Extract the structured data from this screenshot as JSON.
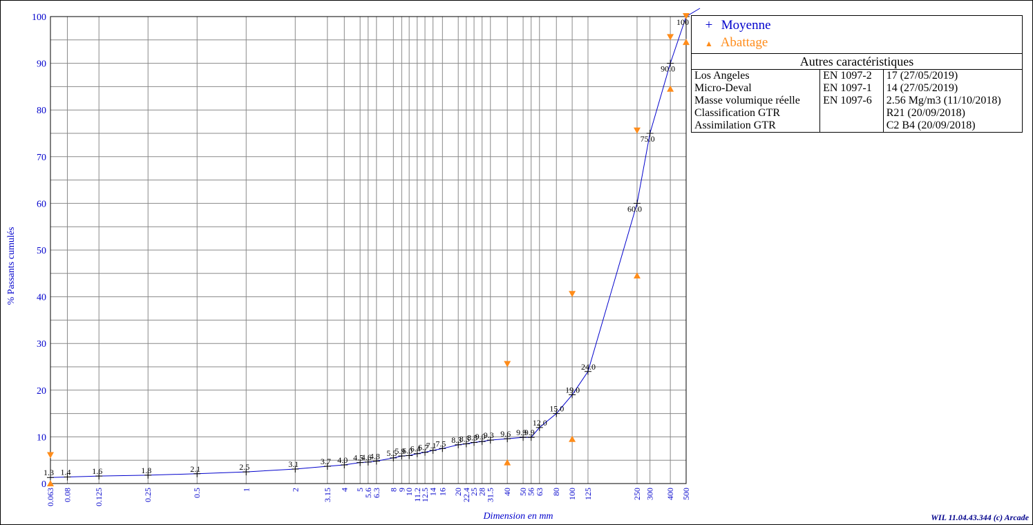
{
  "chart_data": {
    "type": "line",
    "x_scale": "log",
    "xlabel": "Dimension en mm",
    "ylabel": "% Passants cumulés",
    "xlim": [
      0.063,
      500
    ],
    "ylim": [
      0,
      100
    ],
    "y_ticks": [
      "0",
      "10",
      "20",
      "30",
      "40",
      "50",
      "60",
      "70",
      "80",
      "90",
      "100"
    ],
    "x_ticks": [
      {
        "v": 0.063,
        "label": "0.063"
      },
      {
        "v": 0.08,
        "label": "0.08"
      },
      {
        "v": 0.125,
        "label": "0.125"
      },
      {
        "v": 0.25,
        "label": "0.25"
      },
      {
        "v": 0.5,
        "label": "0.5"
      },
      {
        "v": 1,
        "label": "1"
      },
      {
        "v": 2,
        "label": "2"
      },
      {
        "v": 3.15,
        "label": "3.15"
      },
      {
        "v": 4,
        "label": "4"
      },
      {
        "v": 5,
        "label": "5"
      },
      {
        "v": 5.6,
        "label": "5.6"
      },
      {
        "v": 6.3,
        "label": "6.3"
      },
      {
        "v": 8,
        "label": "8"
      },
      {
        "v": 9,
        "label": "9"
      },
      {
        "v": 10,
        "label": "10"
      },
      {
        "v": 11.2,
        "label": "11.2"
      },
      {
        "v": 12.5,
        "label": "12.5"
      },
      {
        "v": 14,
        "label": "14"
      },
      {
        "v": 16,
        "label": "16"
      },
      {
        "v": 20,
        "label": "20"
      },
      {
        "v": 22.4,
        "label": "22.4"
      },
      {
        "v": 25,
        "label": "25"
      },
      {
        "v": 28,
        "label": "28"
      },
      {
        "v": 31.5,
        "label": "31.5"
      },
      {
        "v": 40,
        "label": "40"
      },
      {
        "v": 50,
        "label": "50"
      },
      {
        "v": 56,
        "label": "56"
      },
      {
        "v": 63,
        "label": "63"
      },
      {
        "v": 80,
        "label": "80"
      },
      {
        "v": 100,
        "label": "100"
      },
      {
        "v": 125,
        "label": "125"
      },
      {
        "v": 250,
        "label": "250"
      },
      {
        "v": 300,
        "label": "300"
      },
      {
        "v": 400,
        "label": "400"
      },
      {
        "v": 500,
        "label": "500"
      }
    ],
    "grid": true,
    "series": [
      {
        "name": "Moyenne",
        "color": "#0000cc",
        "points": [
          {
            "x": 0.063,
            "y": 1.3,
            "label": "1.3"
          },
          {
            "x": 0.08,
            "y": 1.4,
            "label": "1.4"
          },
          {
            "x": 0.125,
            "y": 1.6,
            "label": "1.6"
          },
          {
            "x": 0.25,
            "y": 1.8,
            "label": "1.8"
          },
          {
            "x": 0.5,
            "y": 2.1,
            "label": "2.1"
          },
          {
            "x": 1,
            "y": 2.5,
            "label": "2.5"
          },
          {
            "x": 2,
            "y": 3.1,
            "label": "3.1"
          },
          {
            "x": 3.15,
            "y": 3.7,
            "label": "3.7"
          },
          {
            "x": 4,
            "y": 4.0,
            "label": "4.0"
          },
          {
            "x": 5,
            "y": 4.5,
            "label": "4.5"
          },
          {
            "x": 5.6,
            "y": 4.6,
            "label": "4.6"
          },
          {
            "x": 6.3,
            "y": 4.8,
            "label": "4.8"
          },
          {
            "x": 8,
            "y": 5.5,
            "label": "5.5"
          },
          {
            "x": 9,
            "y": 5.9,
            "label": "5.9"
          },
          {
            "x": 10,
            "y": 6.0,
            "label": "6.0"
          },
          {
            "x": 11.2,
            "y": 6.4,
            "label": "6.4"
          },
          {
            "x": 12.5,
            "y": 6.7,
            "label": "6.7"
          },
          {
            "x": 14,
            "y": 7.1,
            "label": "7.1"
          },
          {
            "x": 16,
            "y": 7.5,
            "label": "7.5"
          },
          {
            "x": 20,
            "y": 8.3,
            "label": "8.3"
          },
          {
            "x": 22.4,
            "y": 8.5,
            "label": "8.5"
          },
          {
            "x": 25,
            "y": 8.8,
            "label": "8.8"
          },
          {
            "x": 28,
            "y": 9.0,
            "label": "9.0"
          },
          {
            "x": 31.5,
            "y": 9.3,
            "label": "9.3"
          },
          {
            "x": 40,
            "y": 9.6,
            "label": "9.6"
          },
          {
            "x": 50,
            "y": 9.9,
            "label": "9.9"
          },
          {
            "x": 56,
            "y": 9.9,
            "label": "9.9"
          },
          {
            "x": 63,
            "y": 12.0,
            "label": "12.0"
          },
          {
            "x": 80,
            "y": 15.0,
            "label": "15.0"
          },
          {
            "x": 100,
            "y": 19.0,
            "label": "19.0"
          },
          {
            "x": 125,
            "y": 24.0,
            "label": "24.0"
          },
          {
            "x": 250,
            "y": 60.0,
            "label": "60.0"
          },
          {
            "x": 300,
            "y": 75.0,
            "label": "75.0"
          },
          {
            "x": 400,
            "y": 90.0,
            "label": "90.0"
          },
          {
            "x": 500,
            "y": 100,
            "label": "100"
          }
        ]
      },
      {
        "name": "Abattage",
        "color": "#ff8c1a",
        "upper": [
          {
            "x": 0.063,
            "y": 6.0
          },
          {
            "x": 40,
            "y": 25.5
          },
          {
            "x": 100,
            "y": 40.5
          },
          {
            "x": 250,
            "y": 75.5
          },
          {
            "x": 400,
            "y": 95.5
          },
          {
            "x": 500,
            "y": 100
          }
        ],
        "lower": [
          {
            "x": 0.063,
            "y": 0
          },
          {
            "x": 40,
            "y": 4.5
          },
          {
            "x": 100,
            "y": 9.5
          },
          {
            "x": 250,
            "y": 44.5
          },
          {
            "x": 400,
            "y": 84.5
          },
          {
            "x": 500,
            "y": 94.5
          }
        ]
      }
    ]
  },
  "legend": {
    "items": [
      {
        "symbol": "+",
        "label": "Moyenne",
        "color": "#0000cc"
      },
      {
        "symbol": "▲",
        "label": "Abattage",
        "color": "#ff8c1a"
      }
    ]
  },
  "other_characteristics": {
    "caption": "Autres caractéristiques",
    "rows": [
      {
        "name": "Los Angeles",
        "norm": "EN 1097-2",
        "value": "17   (27/05/2019)"
      },
      {
        "name": "Micro-Deval",
        "norm": "EN 1097-1",
        "value": "14   (27/05/2019)"
      },
      {
        "name": "Masse volumique réelle",
        "norm": "EN 1097-6",
        "value": "2.56 Mg/m3  (11/10/2018)"
      },
      {
        "name": "Classification GTR",
        "norm": "",
        "value": "R21  (20/09/2018)"
      },
      {
        "name": "Assimilation GTR",
        "norm": "",
        "value": "C2 B4  (20/09/2018)"
      }
    ]
  },
  "footer": {
    "copyright": "WIL 11.04.43.344 (c) Arcade"
  }
}
